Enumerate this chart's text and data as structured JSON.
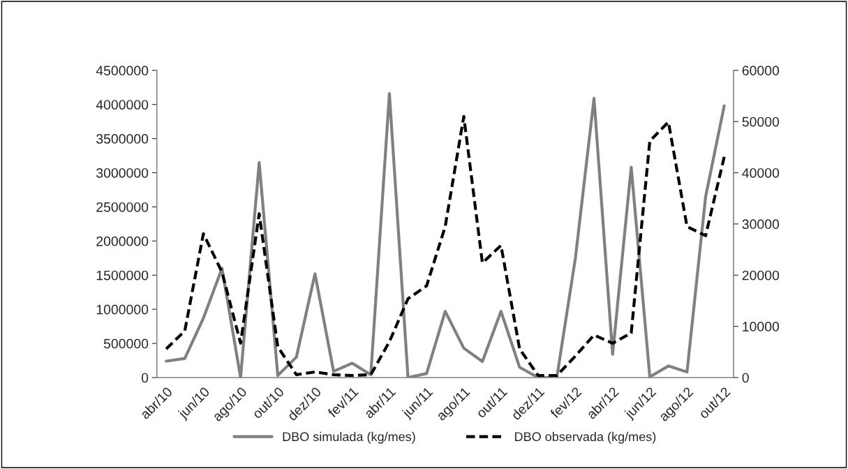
{
  "chart_data": {
    "type": "line",
    "categories": [
      "abr/10",
      null,
      "jun/10",
      null,
      "ago/10",
      null,
      "out/10",
      null,
      "dez/10",
      null,
      "fev/11",
      null,
      "abr/11",
      null,
      "jun/11",
      null,
      "ago/11",
      null,
      "out/11",
      null,
      "dez/11",
      null,
      "fev/12",
      null,
      "abr/12",
      null,
      "jun/12",
      null,
      "ago/12",
      null,
      "out/12"
    ],
    "series": [
      {
        "name": "DBO simulada (kg/mes)",
        "color": "#808080",
        "line_style": "solid",
        "values": [
          240000,
          280000,
          870000,
          1600000,
          0,
          3150000,
          30000,
          300000,
          1520000,
          90000,
          210000,
          40000,
          4160000,
          0,
          60000,
          970000,
          430000,
          235000,
          970000,
          150000,
          0,
          0,
          1750000,
          4090000,
          340000,
          3080000,
          10000,
          170000,
          80000,
          2650000,
          3980000
        ]
      },
      {
        "name": "DBO observada (kg/mes)",
        "color": "#000000",
        "line_style": "dashed",
        "axis": "y2",
        "values": [
          5600,
          9100,
          28100,
          20600,
          6700,
          32000,
          6000,
          550,
          1100,
          550,
          400,
          550,
          7000,
          15400,
          17900,
          29500,
          51000,
          22400,
          25800,
          5600,
          400,
          400,
          4200,
          8300,
          6700,
          8700,
          46200,
          49900,
          29500,
          27700,
          43100
        ]
      }
    ],
    "ylim": [
      0,
      4500000
    ],
    "yticks": [
      0,
      500000,
      1000000,
      1500000,
      2000000,
      2500000,
      3000000,
      3500000,
      4000000,
      4500000
    ],
    "y2lim": [
      0,
      60000
    ],
    "y2ticks": [
      0,
      10000,
      20000,
      30000,
      40000,
      50000,
      60000
    ],
    "grid": false,
    "legend": "bottom",
    "marker": "none"
  }
}
